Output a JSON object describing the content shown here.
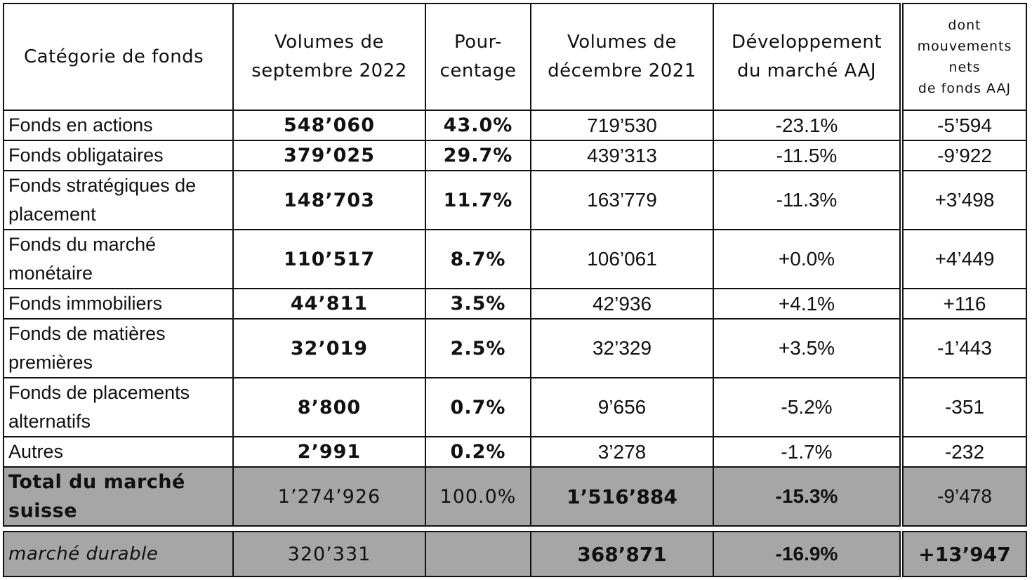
{
  "headers": {
    "category": "Catégorie de fonds",
    "vol_sep_1": "Volumes de",
    "vol_sep_2": "septembre 2022",
    "pct_1": "Pour-",
    "pct_2": "centage",
    "vol_dec_1": "Volumes de",
    "vol_dec_2": "décembre 2021",
    "dev_1": "Développement",
    "dev_2": "du marché AAJ",
    "net_1": "dont",
    "net_2": "mouvements",
    "net_3": "nets",
    "net_4": "de fonds AAJ"
  },
  "rows": [
    {
      "label_1": "Fonds en actions",
      "label_2": "",
      "vol_sep": "548’060",
      "pct": "43.0%",
      "vol_dec": "719’530",
      "dev": "-23.1%",
      "net": "-5’594"
    },
    {
      "label_1": "Fonds obligataires",
      "label_2": "",
      "vol_sep": "379’025",
      "pct": "29.7%",
      "vol_dec": "439’313",
      "dev": "-11.5%",
      "net": "-9’922"
    },
    {
      "label_1": "Fonds stratégiques de",
      "label_2": "placement",
      "vol_sep": "148’703",
      "pct": "11.7%",
      "vol_dec": "163’779",
      "dev": "-11.3%",
      "net": "+3’498"
    },
    {
      "label_1": "Fonds du marché",
      "label_2": "monétaire",
      "vol_sep": "110’517",
      "pct": "8.7%",
      "vol_dec": "106’061",
      "dev": "+0.0%",
      "net": "+4’449"
    },
    {
      "label_1": "Fonds immobiliers",
      "label_2": "",
      "vol_sep": "44’811",
      "pct": "3.5%",
      "vol_dec": "42’936",
      "dev": "+4.1%",
      "net": "+116"
    },
    {
      "label_1": "Fonds de matières",
      "label_2": "premières",
      "vol_sep": "32’019",
      "pct": "2.5%",
      "vol_dec": "32’329",
      "dev": "+3.5%",
      "net": "-1’443"
    },
    {
      "label_1": "Fonds de placements",
      "label_2": "alternatifs",
      "vol_sep": "8’800",
      "pct": "0.7%",
      "vol_dec": "9’656",
      "dev": "-5.2%",
      "net": "-351"
    },
    {
      "label_1": "Autres",
      "label_2": "",
      "vol_sep": "2’991",
      "pct": "0.2%",
      "vol_dec": "3’278",
      "dev": "-1.7%",
      "net": "-232"
    }
  ],
  "total": {
    "label_1": "Total du marché",
    "label_2": "suisse",
    "vol_sep": "1’274’926",
    "pct": "100.0%",
    "vol_dec": "1’516’884",
    "dev": "-15.3%",
    "net": "-9’478"
  },
  "durable": {
    "label": "marché durable",
    "vol_sep": "320’331",
    "pct": "",
    "vol_dec": "368’871",
    "dev": "-16.9%",
    "net": "+13’947"
  },
  "colors": {
    "total_bg": "#a6a6a6",
    "border": "#111111"
  }
}
